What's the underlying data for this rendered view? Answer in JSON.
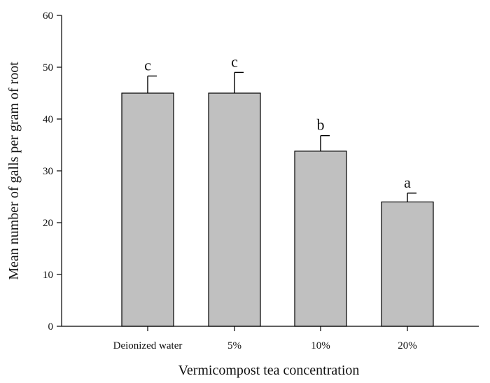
{
  "chart_data": {
    "type": "bar",
    "title": "",
    "xlabel": "Vermicompost tea concentration",
    "ylabel": "Mean number of galls per gram of root",
    "categories": [
      "Deionized water",
      "5%",
      "10%",
      "20%"
    ],
    "values": [
      45,
      45,
      33.8,
      24
    ],
    "errors": [
      3.3,
      4,
      3,
      1.7
    ],
    "significance_letters": [
      "c",
      "c",
      "b",
      "a"
    ],
    "ylim": [
      0,
      60
    ],
    "yticks": [
      "0",
      "10",
      "20",
      "30",
      "40",
      "50",
      "60"
    ],
    "grid": false,
    "legend": "none",
    "bar_color": "#c0c0c0",
    "edge_color": "#000000"
  }
}
